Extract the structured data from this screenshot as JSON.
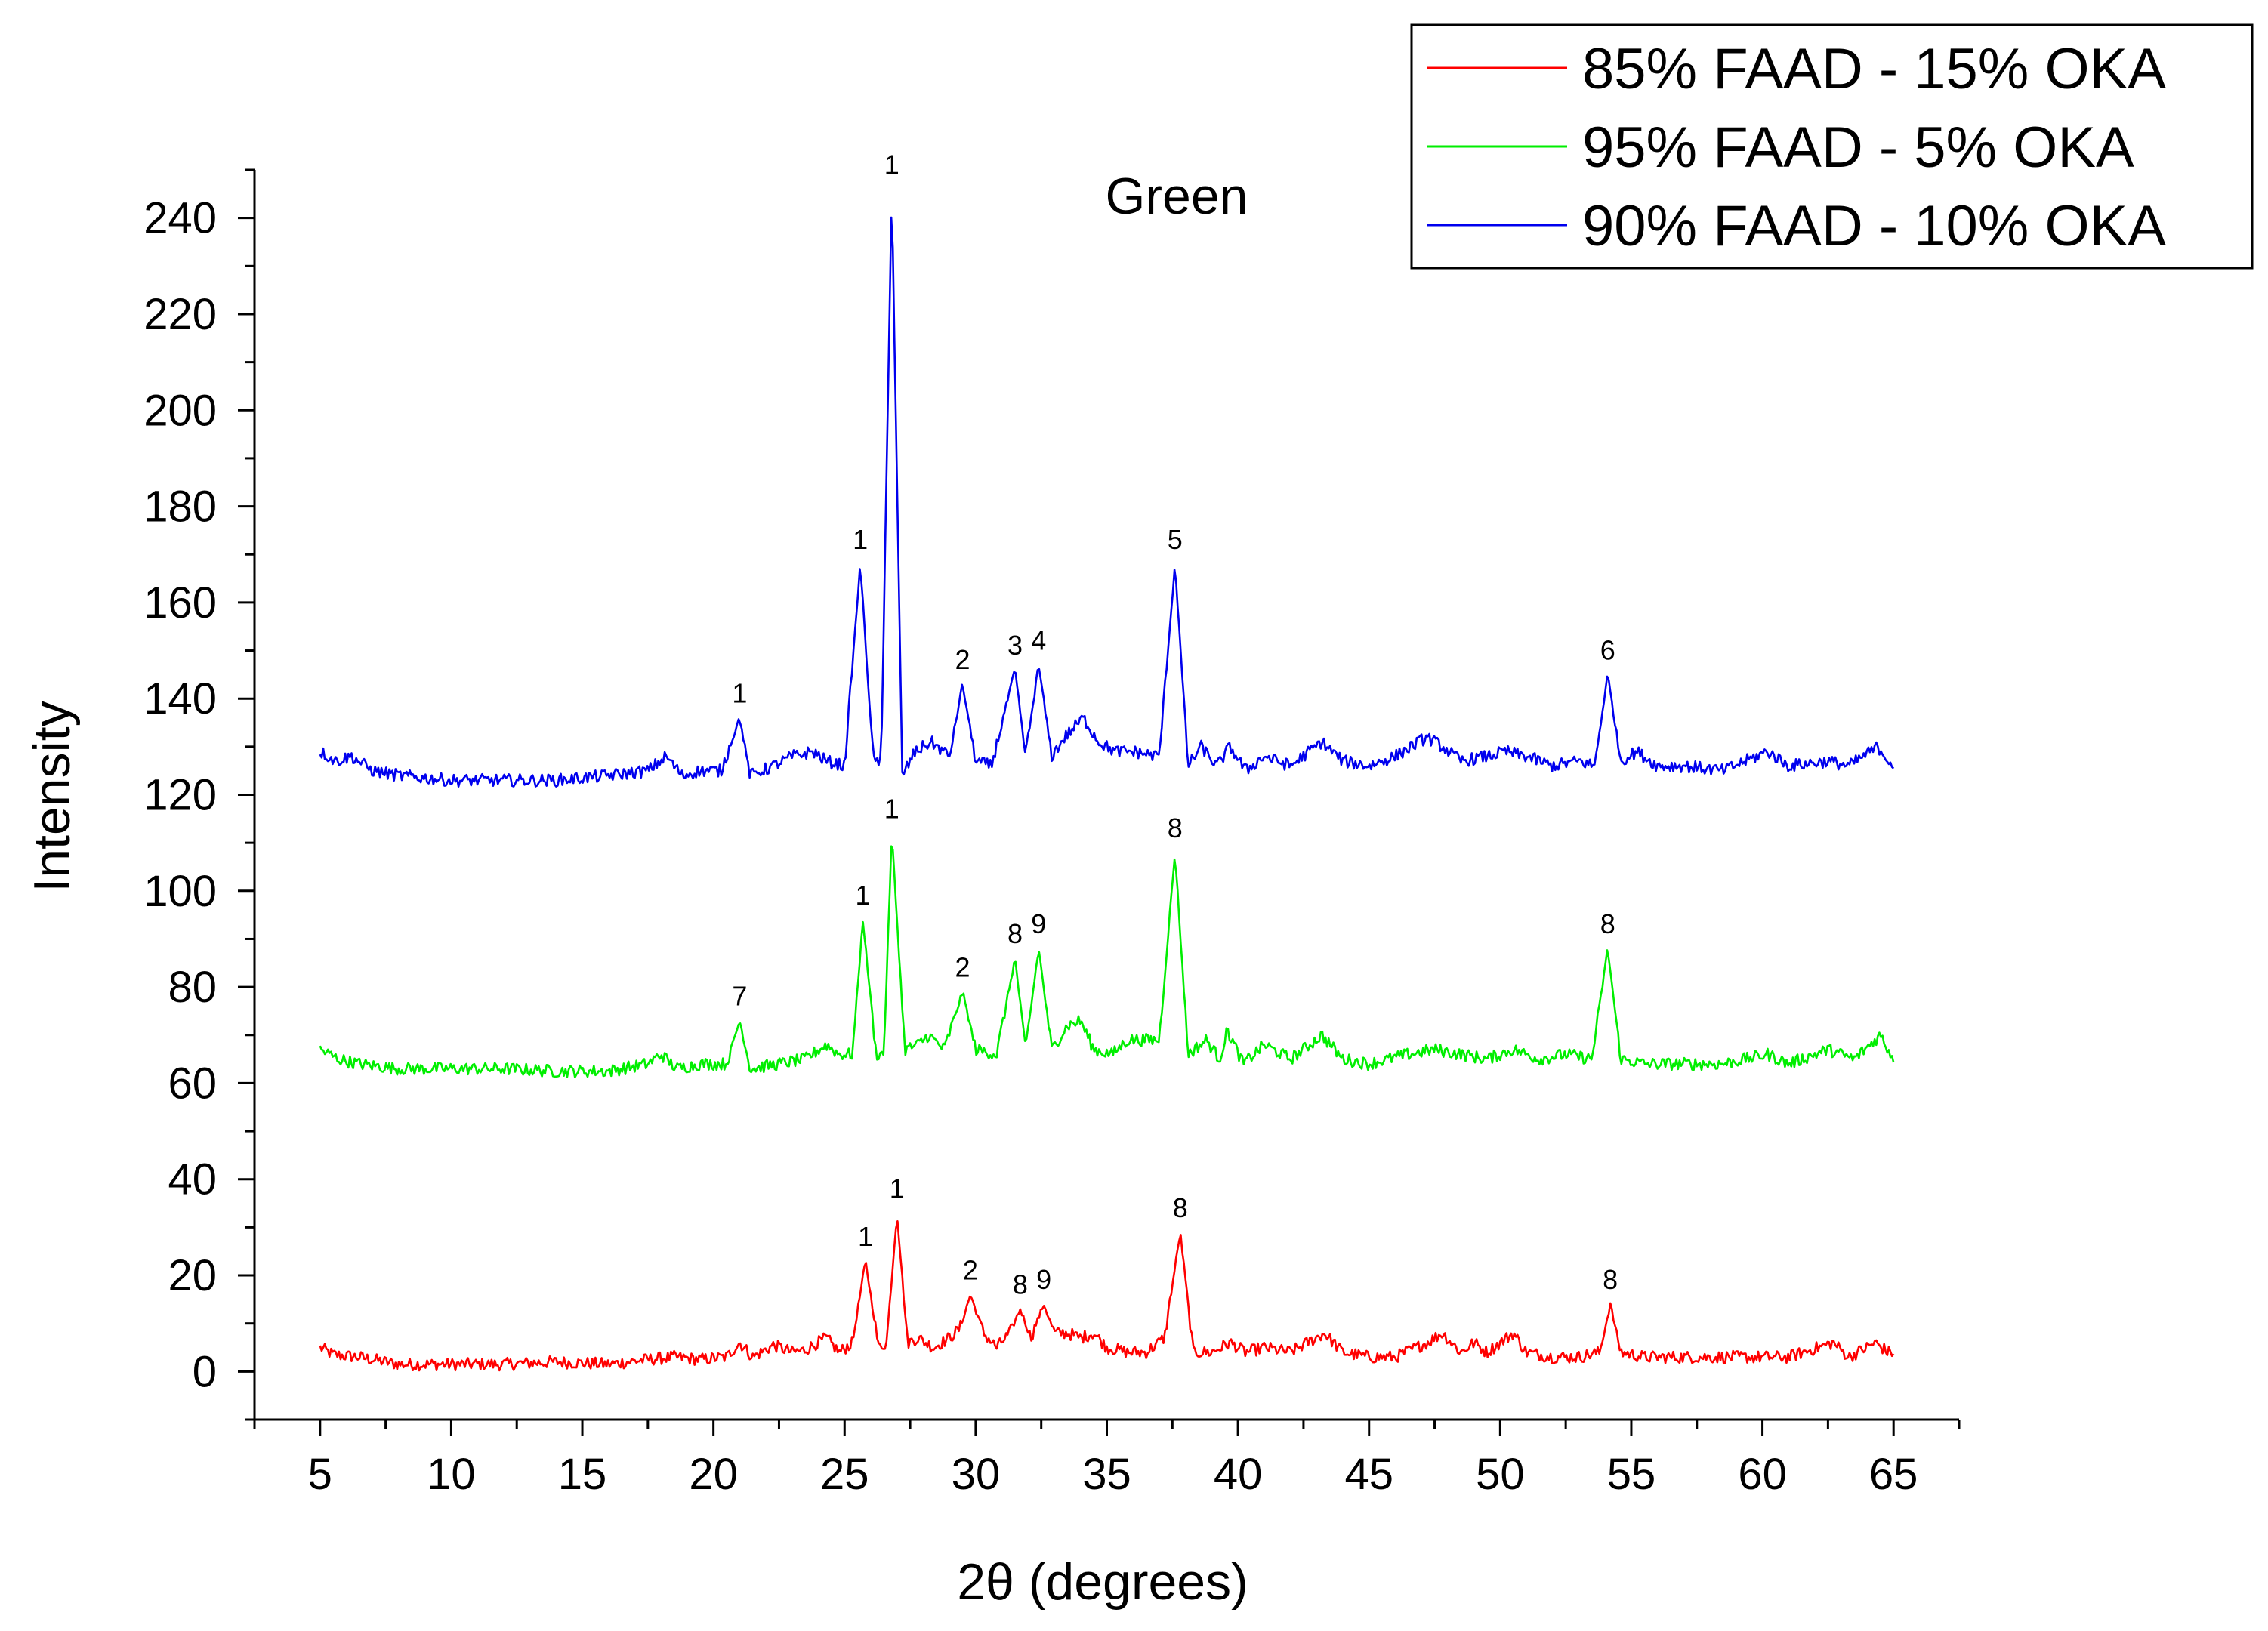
{
  "chart_data": {
    "type": "line",
    "title": "Green",
    "xlabel": "2θ (degrees)",
    "ylabel": "Intensity",
    "xlim": [
      2.5,
      67.5
    ],
    "ylim": [
      -10,
      250
    ],
    "x_ticks": [
      5,
      10,
      15,
      20,
      25,
      30,
      35,
      40,
      45,
      50,
      55,
      60,
      65
    ],
    "y_ticks": [
      0,
      20,
      40,
      60,
      80,
      100,
      120,
      140,
      160,
      180,
      200,
      220,
      240
    ],
    "grid": false,
    "legend_position": "top-right",
    "series": [
      {
        "name": "85% FAAD - 15% OKA",
        "color": "#ff0000",
        "baseline": 2.5,
        "points": [
          [
            5,
            5
          ],
          [
            5.5,
            3.5
          ],
          [
            6.5,
            3
          ],
          [
            8,
            1.5
          ],
          [
            10,
            1.5
          ],
          [
            12,
            1.5
          ],
          [
            14,
            2
          ],
          [
            16,
            1.5
          ],
          [
            17.5,
            2.5
          ],
          [
            18.5,
            3
          ],
          [
            19.5,
            2.5
          ],
          [
            20.5,
            3
          ],
          [
            21,
            6
          ],
          [
            21.5,
            3
          ],
          [
            22.3,
            5.5
          ],
          [
            23,
            4
          ],
          [
            23.5,
            4.5
          ],
          [
            24.3,
            7
          ],
          [
            24.8,
            4
          ],
          [
            25.3,
            6
          ],
          [
            25.8,
            23
          ],
          [
            26.3,
            5
          ],
          [
            26.6,
            6
          ],
          [
            27,
            33
          ],
          [
            27.4,
            6
          ],
          [
            27.8,
            7
          ],
          [
            28.4,
            5
          ],
          [
            29,
            7
          ],
          [
            29.4,
            9
          ],
          [
            29.8,
            16
          ],
          [
            30.3,
            8
          ],
          [
            30.8,
            5
          ],
          [
            31.3,
            8
          ],
          [
            31.7,
            13
          ],
          [
            32.1,
            7
          ],
          [
            32.6,
            14
          ],
          [
            33,
            8
          ],
          [
            33.5,
            8
          ],
          [
            34,
            7
          ],
          [
            34.5,
            8
          ],
          [
            35,
            5
          ],
          [
            35.8,
            4
          ],
          [
            36.5,
            4
          ],
          [
            37.2,
            7
          ],
          [
            37.8,
            29
          ],
          [
            38.3,
            4
          ],
          [
            39,
            4
          ],
          [
            39.7,
            6
          ],
          [
            40.3,
            4
          ],
          [
            41,
            5
          ],
          [
            42,
            4
          ],
          [
            43.3,
            8
          ],
          [
            44,
            4
          ],
          [
            45,
            3
          ],
          [
            46,
            3
          ],
          [
            47.2,
            6
          ],
          [
            47.8,
            8
          ],
          [
            48.5,
            4
          ],
          [
            49,
            6
          ],
          [
            49.5,
            4
          ],
          [
            50.5,
            8
          ],
          [
            51,
            4
          ],
          [
            52,
            3
          ],
          [
            53,
            3
          ],
          [
            53.8,
            4
          ],
          [
            54.2,
            14
          ],
          [
            54.6,
            4
          ],
          [
            55.5,
            3
          ],
          [
            57,
            3
          ],
          [
            58.5,
            3
          ],
          [
            60,
            3
          ],
          [
            61,
            3
          ],
          [
            62.7,
            6
          ],
          [
            63.3,
            3
          ],
          [
            64.3,
            6
          ],
          [
            64.8,
            4
          ],
          [
            65,
            4
          ]
        ],
        "peaks": [
          {
            "x": 25.8,
            "y": 23,
            "label": "1"
          },
          {
            "x": 27.0,
            "y": 33,
            "label": "1"
          },
          {
            "x": 29.8,
            "y": 16,
            "label": "2"
          },
          {
            "x": 31.7,
            "y": 13,
            "label": "8"
          },
          {
            "x": 32.6,
            "y": 14,
            "label": "9"
          },
          {
            "x": 37.8,
            "y": 29,
            "label": "8"
          },
          {
            "x": 54.2,
            "y": 14,
            "label": "8"
          }
        ]
      },
      {
        "name": "95% FAAD - 5% OKA",
        "color": "#00ee00",
        "baseline": 63.5,
        "points": [
          [
            5,
            67
          ],
          [
            5.7,
            65
          ],
          [
            6.5,
            64
          ],
          [
            8,
            63
          ],
          [
            10,
            63
          ],
          [
            12,
            63
          ],
          [
            14,
            62.5
          ],
          [
            16,
            62.5
          ],
          [
            17.5,
            64
          ],
          [
            18,
            66
          ],
          [
            18.6,
            63
          ],
          [
            19.5,
            64
          ],
          [
            20.5,
            64
          ],
          [
            21,
            73
          ],
          [
            21.4,
            63
          ],
          [
            22.5,
            64
          ],
          [
            23.5,
            65
          ],
          [
            24.3,
            68
          ],
          [
            24.8,
            66
          ],
          [
            25.3,
            66
          ],
          [
            25.7,
            94
          ],
          [
            26.2,
            66
          ],
          [
            26.5,
            66
          ],
          [
            26.8,
            112
          ],
          [
            27.3,
            67
          ],
          [
            27.8,
            68
          ],
          [
            28.2,
            70
          ],
          [
            28.8,
            67
          ],
          [
            29.5,
            79
          ],
          [
            30,
            67
          ],
          [
            30.8,
            66
          ],
          [
            31.5,
            86
          ],
          [
            31.9,
            67
          ],
          [
            32.4,
            88
          ],
          [
            32.9,
            67
          ],
          [
            33.5,
            72
          ],
          [
            34,
            73
          ],
          [
            34.5,
            67
          ],
          [
            35.2,
            66
          ],
          [
            35.8,
            69
          ],
          [
            36.5,
            69
          ],
          [
            37,
            69
          ],
          [
            37.6,
            108
          ],
          [
            38.1,
            66
          ],
          [
            38.8,
            69
          ],
          [
            39.3,
            65
          ],
          [
            39.6,
            71
          ],
          [
            40.2,
            64
          ],
          [
            41,
            68
          ],
          [
            42,
            65
          ],
          [
            42.5,
            67
          ],
          [
            43.2,
            70
          ],
          [
            44,
            65
          ],
          [
            45,
            64
          ],
          [
            46.5,
            66
          ],
          [
            47.5,
            67
          ],
          [
            48.5,
            66
          ],
          [
            49.5,
            65
          ],
          [
            50.5,
            67
          ],
          [
            51.5,
            65
          ],
          [
            52.5,
            66
          ],
          [
            53.5,
            65
          ],
          [
            54.1,
            88
          ],
          [
            54.6,
            65
          ],
          [
            55.5,
            64
          ],
          [
            57,
            64
          ],
          [
            58.5,
            64
          ],
          [
            60.2,
            66
          ],
          [
            61,
            64
          ],
          [
            62.5,
            67
          ],
          [
            63.5,
            65
          ],
          [
            64.5,
            70
          ],
          [
            65,
            65
          ]
        ],
        "peaks": [
          {
            "x": 21.0,
            "y": 73,
            "label": "7"
          },
          {
            "x": 25.7,
            "y": 94,
            "label": "1"
          },
          {
            "x": 26.8,
            "y": 112,
            "label": "1"
          },
          {
            "x": 29.5,
            "y": 79,
            "label": "2"
          },
          {
            "x": 31.5,
            "y": 86,
            "label": "8"
          },
          {
            "x": 32.4,
            "y": 88,
            "label": "9"
          },
          {
            "x": 37.6,
            "y": 108,
            "label": "8"
          },
          {
            "x": 54.1,
            "y": 88,
            "label": "8"
          }
        ]
      },
      {
        "name": "90% FAAD - 10% OKA",
        "color": "#0000ee",
        "baseline": 124.5,
        "points": [
          [
            5,
            129
          ],
          [
            5.6,
            127
          ],
          [
            6.2,
            128
          ],
          [
            7,
            125
          ],
          [
            8,
            124
          ],
          [
            10,
            123
          ],
          [
            12,
            123
          ],
          [
            14,
            123
          ],
          [
            16,
            124
          ],
          [
            17.5,
            125
          ],
          [
            18.2,
            128
          ],
          [
            18.8,
            124
          ],
          [
            19.5,
            125
          ],
          [
            20.3,
            125
          ],
          [
            21,
            136
          ],
          [
            21.4,
            124
          ],
          [
            22.3,
            126
          ],
          [
            23,
            128
          ],
          [
            23.8,
            129
          ],
          [
            24.3,
            127
          ],
          [
            25,
            126
          ],
          [
            25.6,
            168
          ],
          [
            26.1,
            127
          ],
          [
            26.4,
            127
          ],
          [
            26.8,
            246
          ],
          [
            27.2,
            124
          ],
          [
            27.7,
            129
          ],
          [
            28.3,
            131
          ],
          [
            29,
            128
          ],
          [
            29.5,
            143
          ],
          [
            30,
            127
          ],
          [
            30.6,
            126
          ],
          [
            31.5,
            146
          ],
          [
            31.9,
            128
          ],
          [
            32.4,
            147
          ],
          [
            32.9,
            128
          ],
          [
            33.4,
            132
          ],
          [
            34.1,
            136
          ],
          [
            34.7,
            131
          ],
          [
            35.3,
            129
          ],
          [
            36,
            129
          ],
          [
            37,
            128
          ],
          [
            37.6,
            168
          ],
          [
            38.1,
            126
          ],
          [
            38.6,
            130
          ],
          [
            39.2,
            126
          ],
          [
            39.7,
            130
          ],
          [
            40.3,
            125
          ],
          [
            41,
            128
          ],
          [
            42,
            126
          ],
          [
            43.2,
            131
          ],
          [
            44,
            127
          ],
          [
            45,
            126
          ],
          [
            46,
            128
          ],
          [
            47.2,
            132
          ],
          [
            47.8,
            130
          ],
          [
            48.5,
            127
          ],
          [
            49.5,
            128
          ],
          [
            50.2,
            129
          ],
          [
            51,
            128
          ],
          [
            52,
            126
          ],
          [
            53,
            127
          ],
          [
            53.6,
            126
          ],
          [
            54.1,
            145
          ],
          [
            54.6,
            127
          ],
          [
            55.2,
            129
          ],
          [
            56,
            126
          ],
          [
            57,
            126
          ],
          [
            58.5,
            125
          ],
          [
            60.2,
            129
          ],
          [
            61,
            126
          ],
          [
            62.5,
            127
          ],
          [
            63.3,
            126
          ],
          [
            64.4,
            130
          ],
          [
            65,
            126
          ]
        ],
        "peaks": [
          {
            "x": 21.0,
            "y": 136,
            "label": "1"
          },
          {
            "x": 25.6,
            "y": 168,
            "label": "1"
          },
          {
            "x": 26.8,
            "y": 246,
            "label": "1"
          },
          {
            "x": 29.5,
            "y": 143,
            "label": "2"
          },
          {
            "x": 31.5,
            "y": 146,
            "label": "3"
          },
          {
            "x": 32.4,
            "y": 147,
            "label": "4"
          },
          {
            "x": 37.6,
            "y": 168,
            "label": "5"
          },
          {
            "x": 54.1,
            "y": 145,
            "label": "6"
          }
        ]
      }
    ],
    "legend_order": [
      0,
      1,
      2
    ]
  }
}
